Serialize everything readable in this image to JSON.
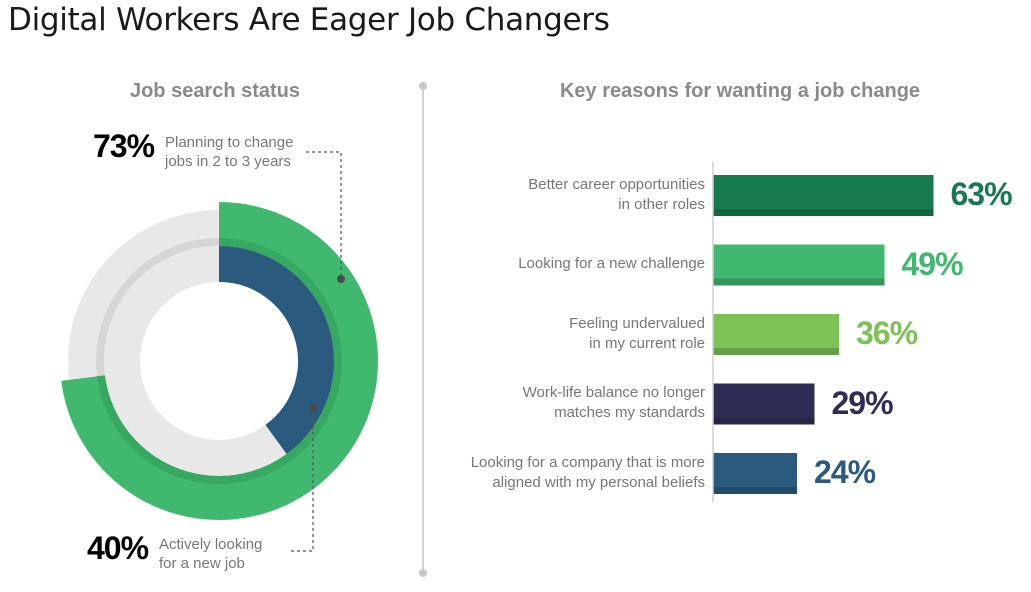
{
  "title": "Digital Workers Are Eager Job Changers",
  "donut_panel": {
    "title": "Job search status",
    "outer": {
      "value_label": "73%",
      "note_line1": "Planning to change",
      "note_line2": "jobs in 2 to 3 years",
      "color": "#41b86f"
    },
    "inner": {
      "value_label": "40%",
      "note_line1": "Actively looking",
      "note_line2": "for a new job",
      "color": "#2a5b7e"
    }
  },
  "bar_panel": {
    "title": "Key reasons for wanting a job change"
  },
  "chart_data": [
    {
      "type": "pie",
      "title": "Job search status",
      "series": [
        {
          "label": "Planning to change jobs in 2 to 3 years",
          "value": 73,
          "color": "#41b86f"
        },
        {
          "label": "Actively looking for a new job",
          "value": 40,
          "color": "#2a5b7e"
        }
      ]
    },
    {
      "type": "bar",
      "title": "Key reasons for wanting a job change",
      "orientation": "horizontal",
      "categories": [
        {
          "line1": "Better career opportunities",
          "line2": "in other roles"
        },
        {
          "line1": "Looking for a new challenge",
          "line2": ""
        },
        {
          "line1": "Feeling undervalued",
          "line2": "in my current role"
        },
        {
          "line1": "Work-life balance no longer",
          "line2": "matches my standards"
        },
        {
          "line1": "Looking for a company that is more",
          "line2": "aligned with my personal beliefs"
        }
      ],
      "values": [
        63,
        49,
        36,
        29,
        24
      ],
      "value_labels": [
        "63%",
        "49%",
        "36%",
        "29%",
        "24%"
      ],
      "colors": [
        "#167a4e",
        "#41b86f",
        "#7cc256",
        "#2e2d56",
        "#2a5b7e"
      ],
      "xlim": [
        0,
        100
      ]
    }
  ]
}
